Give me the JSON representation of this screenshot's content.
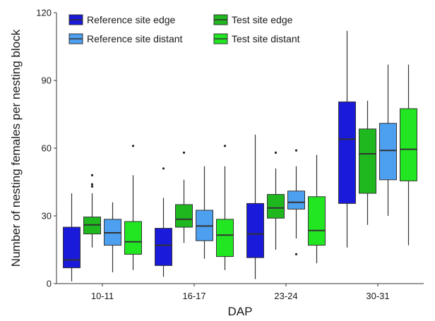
{
  "chart_data": {
    "type": "box",
    "xlabel": "DAP",
    "ylabel": "Number of nesting females per nesting block",
    "ylim": [
      0,
      120
    ],
    "yticks": [
      0,
      30,
      60,
      90,
      120
    ],
    "categories": [
      "10-11",
      "16-17",
      "23-24",
      "30-31"
    ],
    "legend_position": "top-left, two columns",
    "series": [
      {
        "name": "Reference site edge",
        "color": "#1a1adb",
        "boxes": [
          {
            "whisker_low": 1,
            "q1": 7,
            "median": 10.5,
            "q3": 25,
            "whisker_high": 40,
            "outliers": []
          },
          {
            "whisker_low": 3,
            "q1": 8,
            "median": 17,
            "q3": 24.5,
            "whisker_high": 38,
            "outliers": [
              51
            ]
          },
          {
            "whisker_low": 2,
            "q1": 11.5,
            "median": 22,
            "q3": 35.5,
            "whisker_high": 66,
            "outliers": []
          },
          {
            "whisker_low": 16,
            "q1": 35.5,
            "median": 64,
            "q3": 80.5,
            "whisker_high": 112,
            "outliers": []
          }
        ]
      },
      {
        "name": "Test site edge",
        "color": "#1fb81f",
        "boxes": [
          {
            "whisker_low": 16,
            "q1": 22,
            "median": 26,
            "q3": 29.5,
            "whisker_high": 40,
            "outliers": [
              43,
              44,
              48
            ]
          },
          {
            "whisker_low": 18,
            "q1": 25,
            "median": 28.5,
            "q3": 35,
            "whisker_high": 46,
            "outliers": [
              58
            ]
          },
          {
            "whisker_low": 15,
            "q1": 29,
            "median": 33.5,
            "q3": 39.5,
            "whisker_high": 51,
            "outliers": [
              58
            ]
          },
          {
            "whisker_low": 26,
            "q1": 40,
            "median": 57.5,
            "q3": 68.5,
            "whisker_high": 81,
            "outliers": []
          }
        ]
      },
      {
        "name": "Reference site distant",
        "color": "#4d9fef",
        "boxes": [
          {
            "whisker_low": 5,
            "q1": 17,
            "median": 22.5,
            "q3": 28.5,
            "whisker_high": 36,
            "outliers": []
          },
          {
            "whisker_low": 11,
            "q1": 19,
            "median": 25.5,
            "q3": 32.5,
            "whisker_high": 52,
            "outliers": []
          },
          {
            "whisker_low": 20,
            "q1": 33,
            "median": 36,
            "q3": 41,
            "whisker_high": 52,
            "outliers": [
              59,
              13
            ]
          },
          {
            "whisker_low": 30,
            "q1": 46,
            "median": 59,
            "q3": 71,
            "whisker_high": 97,
            "outliers": []
          }
        ]
      },
      {
        "name": "Test site distant",
        "color": "#22e622",
        "boxes": [
          {
            "whisker_low": 6,
            "q1": 13,
            "median": 18.5,
            "q3": 27.5,
            "whisker_high": 48,
            "outliers": [
              61
            ]
          },
          {
            "whisker_low": 6,
            "q1": 12,
            "median": 21.5,
            "q3": 28.5,
            "whisker_high": 52,
            "outliers": [
              61
            ]
          },
          {
            "whisker_low": 9,
            "q1": 17,
            "median": 23.5,
            "q3": 38.5,
            "whisker_high": 57,
            "outliers": []
          },
          {
            "whisker_low": 17,
            "q1": 45.5,
            "median": 59.5,
            "q3": 77.5,
            "whisker_high": 97,
            "outliers": []
          }
        ]
      }
    ]
  }
}
